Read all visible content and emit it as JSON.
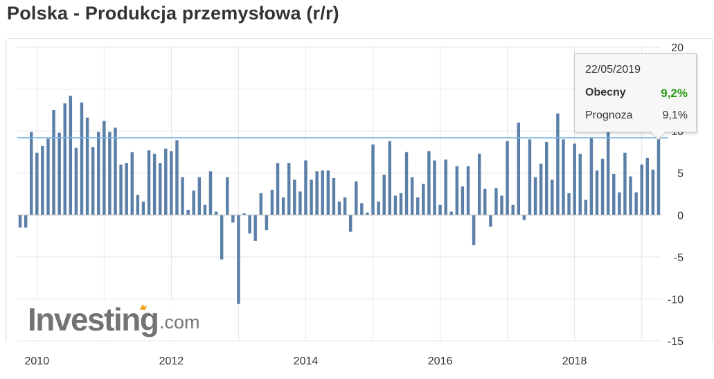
{
  "header": {
    "title": "Polska - Produkcja przemysłowa (r/r)"
  },
  "logo": {
    "main": "Investing",
    "suffix": ".com"
  },
  "tooltip": {
    "date": "22/05/2019",
    "current_label": "Obecny",
    "current_value": "9,2%",
    "forecast_label": "Prognoza",
    "forecast_value": "9,1%"
  },
  "colors": {
    "bar": "#5a7fa8",
    "reference_line": "#7fb5e3",
    "current_value": "#2a9d14",
    "grid": "#e5e5e5"
  },
  "chart_data": {
    "type": "bar",
    "title": "Polska - Produkcja przemysłowa (r/r)",
    "xlabel": "",
    "ylabel": "",
    "ylim": [
      -15,
      20
    ],
    "yticks": [
      20,
      15,
      10,
      5,
      0,
      -5,
      -10,
      -15
    ],
    "xticks": [
      "2010",
      "2012",
      "2014",
      "2016",
      "2018"
    ],
    "grid": true,
    "reference_line": 9.2,
    "start_month": "2009-10",
    "values": [
      -1.5,
      -1.5,
      9.9,
      7.4,
      8.2,
      9.1,
      12.5,
      9.8,
      13.3,
      14.2,
      8.0,
      13.4,
      11.6,
      8.1,
      9.9,
      11.2,
      9.9,
      10.4,
      6.0,
      6.2,
      7.5,
      2.4,
      1.6,
      7.7,
      7.3,
      6.2,
      7.9,
      7.6,
      8.9,
      4.5,
      0.6,
      2.9,
      4.5,
      1.2,
      5.2,
      0.4,
      -5.3,
      4.5,
      -0.9,
      -10.6,
      0.2,
      -2.2,
      -3.1,
      2.6,
      -1.8,
      3.0,
      6.2,
      2.1,
      6.2,
      4.2,
      2.8,
      6.5,
      4.2,
      5.2,
      5.3,
      5.3,
      4.4,
      1.6,
      2.1,
      -2.0,
      4.0,
      1.4,
      0.3,
      8.4,
      1.6,
      4.8,
      8.8,
      2.3,
      2.6,
      7.5,
      4.5,
      2.1,
      3.7,
      7.6,
      6.5,
      1.2,
      6.6,
      0.4,
      5.8,
      3.4,
      5.8,
      -3.6,
      7.3,
      3.1,
      -1.4,
      3.2,
      2.3,
      8.8,
      1.2,
      11.0,
      -0.6,
      9.0,
      4.5,
      6.1,
      8.7,
      4.2,
      12.1,
      9.0,
      2.6,
      8.5,
      7.3,
      1.8,
      9.2,
      5.3,
      6.7,
      12.5,
      4.9,
      2.7,
      7.4,
      4.6,
      2.7,
      6.0,
      6.8,
      5.4,
      9.2
    ]
  }
}
